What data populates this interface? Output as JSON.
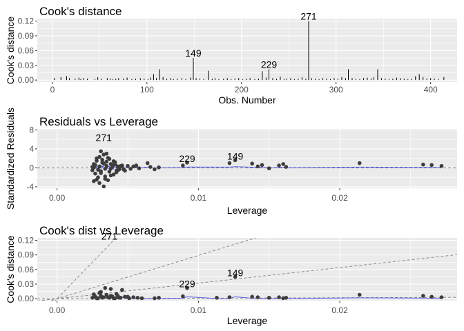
{
  "chart_data": [
    {
      "type": "bar",
      "title": "Cook's distance",
      "xlabel": "Obs. Number",
      "ylabel": "Cook's distance",
      "xlim": [
        -16,
        428
      ],
      "ylim": [
        -0.004,
        0.125
      ],
      "x_ticks": [
        0,
        100,
        200,
        300,
        400
      ],
      "y_ticks": [
        0.0,
        0.03,
        0.06,
        0.09,
        0.12
      ],
      "y_tick_labels": [
        "0.00",
        "0.03",
        "0.06",
        "0.09",
        "0.12"
      ],
      "grid": true,
      "series": [
        {
          "x": [
            2,
            9,
            15,
            18,
            24,
            28,
            30,
            33,
            37,
            45,
            48,
            52,
            58,
            61,
            64,
            67,
            70,
            75,
            79,
            84,
            88,
            93,
            97,
            101,
            104,
            107,
            110,
            113,
            117,
            121,
            125,
            128,
            132,
            137,
            141,
            146,
            149,
            152,
            156,
            160,
            165,
            169,
            172,
            176,
            181,
            185,
            189,
            193,
            197,
            201,
            205,
            209,
            214,
            218,
            222,
            226,
            229,
            233,
            237,
            241,
            245,
            248,
            252,
            256,
            260,
            264,
            268,
            271,
            274,
            278,
            282,
            286,
            290,
            294,
            298,
            302,
            306,
            310,
            313,
            317,
            321,
            325,
            329,
            333,
            337,
            340,
            344,
            348,
            352,
            356,
            360,
            364,
            368,
            372,
            376,
            380,
            384,
            388,
            392,
            396,
            400,
            404,
            408,
            414
          ],
          "y": [
            0.004,
            0.006,
            0.008,
            0.004,
            0.003,
            0.005,
            0.002,
            0.004,
            0.003,
            0.002,
            0.006,
            0.003,
            0.004,
            0.003,
            0.002,
            0.003,
            0.004,
            0.003,
            0.005,
            0.002,
            0.003,
            0.004,
            0.003,
            0.002,
            0.005,
            0.012,
            0.004,
            0.022,
            0.006,
            0.003,
            0.004,
            0.002,
            0.003,
            0.004,
            0.002,
            0.005,
            0.045,
            0.004,
            0.003,
            0.002,
            0.019,
            0.003,
            0.004,
            0.002,
            0.003,
            0.004,
            0.002,
            0.003,
            0.004,
            0.002,
            0.003,
            0.004,
            0.002,
            0.003,
            0.018,
            0.005,
            0.022,
            0.004,
            0.003,
            0.007,
            0.002,
            0.003,
            0.004,
            0.002,
            0.003,
            0.006,
            0.003,
            0.12,
            0.004,
            0.003,
            0.002,
            0.004,
            0.003,
            0.002,
            0.004,
            0.003,
            0.006,
            0.004,
            0.022,
            0.004,
            0.003,
            0.002,
            0.004,
            0.005,
            0.003,
            0.006,
            0.022,
            0.004,
            0.003,
            0.002,
            0.003,
            0.005,
            0.004,
            0.003,
            0.002,
            0.003,
            0.008,
            0.012,
            0.006,
            0.003,
            0.004,
            0.003,
            0.002,
            0.006
          ]
        }
      ],
      "annotations": [
        {
          "label": "149",
          "x": 149,
          "y": 0.045
        },
        {
          "label": "229",
          "x": 229,
          "y": 0.022
        },
        {
          "label": "271",
          "x": 271,
          "y": 0.12
        }
      ]
    },
    {
      "type": "scatter",
      "title": "Residuals vs Leverage",
      "xlabel": "Leverage",
      "ylabel": "Standardized Residuals",
      "xlim": [
        -0.0014,
        0.0283
      ],
      "ylim": [
        -4.3,
        8.2
      ],
      "x_ticks": [
        0.0,
        0.01,
        0.02
      ],
      "x_tick_labels": [
        "0.00",
        "0.01",
        "0.02"
      ],
      "y_ticks": [
        -4,
        0,
        4,
        8
      ],
      "y_tick_labels": [
        "-4",
        "0",
        "4",
        "8"
      ],
      "grid": true,
      "reference_line_y": 0,
      "series": [
        {
          "x": [
            0.0025,
            0.0026,
            0.0027,
            0.0028,
            0.0029,
            0.003,
            0.0031,
            0.0032,
            0.0033,
            0.0034,
            0.0035,
            0.0036,
            0.0037,
            0.0038,
            0.0039,
            0.004,
            0.0041,
            0.0042,
            0.0043,
            0.0044,
            0.0046,
            0.0048,
            0.005,
            0.0052,
            0.0054,
            0.0056,
            0.0058,
            0.0025,
            0.0027,
            0.0029,
            0.0031,
            0.0033,
            0.0035,
            0.0037,
            0.0039,
            0.0041,
            0.0043,
            0.0045,
            0.0047,
            0.0026,
            0.0028,
            0.003,
            0.0032,
            0.0034,
            0.0036,
            0.0038,
            0.004,
            0.0026,
            0.003,
            0.0034,
            0.0038,
            0.0042,
            0.0046,
            0.0033,
            0.0031,
            0.0035,
            0.0028,
            0.0064,
            0.0066,
            0.0069,
            0.0072,
            0.0089,
            0.0092,
            0.0122,
            0.0126,
            0.0138,
            0.0142,
            0.0145,
            0.015,
            0.0157,
            0.016,
            0.0162,
            0.0214,
            0.0259,
            0.0265,
            0.0272
          ],
          "y": [
            -0.5,
            0.8,
            -1.2,
            1.5,
            -2.0,
            2.3,
            -0.7,
            1.1,
            2.8,
            -1.8,
            0.4,
            -2.6,
            1.9,
            -0.2,
            0.6,
            -1.4,
            1.2,
            -0.9,
            0.3,
            -0.3,
            0.5,
            -0.6,
            0.4,
            -0.2,
            0.3,
            0.5,
            -0.1,
            0.2,
            0.6,
            -0.4,
            -1.1,
            0.9,
            1.3,
            -0.8,
            0.2,
            0.7,
            -0.5,
            0.4,
            -0.3,
            -2.8,
            2.0,
            -3.2,
            1.7,
            -2.3,
            2.1,
            -1.6,
            1.4,
            0.1,
            0.3,
            -0.2,
            0.8,
            -0.6,
            0.3,
            -3.9,
            3.5,
            3.0,
            -2.5,
            1.0,
            0.2,
            -0.3,
            0.1,
            0.5,
            1.1,
            1.0,
            1.6,
            0.9,
            0.3,
            0.6,
            -0.1,
            0.5,
            0.8,
            0.2,
            1.0,
            0.7,
            0.6,
            0.4
          ]
        }
      ],
      "annotations": [
        {
          "label": "271",
          "x": 0.0033,
          "y": 5.5
        },
        {
          "label": "229",
          "x": 0.0092,
          "y": 1.1
        },
        {
          "label": "149",
          "x": 0.0126,
          "y": 1.6
        }
      ]
    },
    {
      "type": "scatter",
      "title": "Cook's dist vs Leverage",
      "xlabel": "Leverage",
      "ylabel": "Cook's distance",
      "xlim": [
        -0.0014,
        0.0283
      ],
      "ylim": [
        -0.004,
        0.125
      ],
      "x_ticks": [
        0.0,
        0.01,
        0.02
      ],
      "x_tick_labels": [
        "0.00",
        "0.01",
        "0.02"
      ],
      "y_ticks": [
        0.0,
        0.03,
        0.06,
        0.09,
        0.12
      ],
      "y_tick_labels": [
        "0.00",
        "0.03",
        "0.06",
        "0.09",
        "0.12"
      ],
      "grid": true,
      "reference_lines_through_origin_slopes": [
        0.1,
        3.2,
        8.9,
        30
      ],
      "series": [
        {
          "x": [
            0.0025,
            0.0027,
            0.0029,
            0.0031,
            0.0033,
            0.0035,
            0.0037,
            0.0039,
            0.0041,
            0.0043,
            0.0045,
            0.0048,
            0.0051,
            0.0054,
            0.0057,
            0.006,
            0.0026,
            0.003,
            0.0034,
            0.0038,
            0.0042,
            0.0046,
            0.005,
            0.0028,
            0.0032,
            0.0036,
            0.004,
            0.0044,
            0.0031,
            0.0038,
            0.0043,
            0.0069,
            0.0072,
            0.0089,
            0.0092,
            0.0113,
            0.0122,
            0.0126,
            0.0138,
            0.0142,
            0.015,
            0.0157,
            0.016,
            0.0162,
            0.0214,
            0.0259,
            0.0265,
            0.0272
          ],
          "y": [
            0.002,
            0.004,
            0.001,
            0.006,
            0.003,
            0.008,
            0.002,
            0.005,
            0.001,
            0.003,
            0.002,
            0.004,
            0.001,
            0.003,
            0.002,
            0.001,
            0.009,
            0.012,
            0.022,
            0.006,
            0.01,
            0.018,
            0.004,
            0.001,
            0.002,
            0.003,
            0.001,
            0.002,
            0.014,
            0.02,
            0.006,
            0.001,
            0.002,
            0.005,
            0.022,
            0.002,
            0.003,
            0.045,
            0.004,
            0.003,
            0.002,
            0.003,
            0.001,
            0.002,
            0.008,
            0.006,
            0.004,
            0.003
          ]
        }
      ],
      "annotations": [
        {
          "label": "271",
          "x": 0.0037,
          "y": 0.12
        },
        {
          "label": "229",
          "x": 0.0092,
          "y": 0.022
        },
        {
          "label": "149",
          "x": 0.0126,
          "y": 0.045
        }
      ]
    }
  ]
}
